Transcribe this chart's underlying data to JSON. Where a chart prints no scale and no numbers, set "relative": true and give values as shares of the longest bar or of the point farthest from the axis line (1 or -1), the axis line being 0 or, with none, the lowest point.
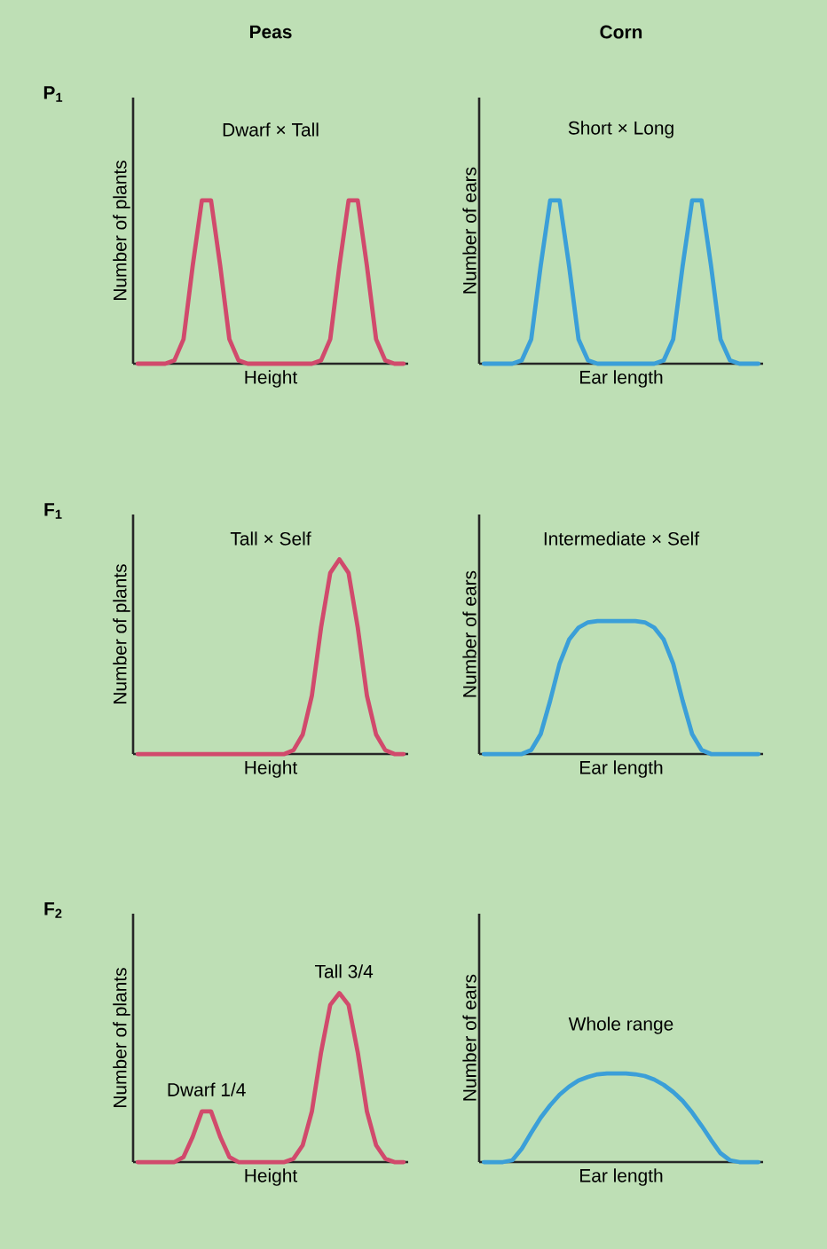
{
  "chart_data": [
    {
      "type": "line",
      "relative": true,
      "title": "Dwarf × Tall",
      "xlabel": "Height",
      "ylabel": "Number of plants",
      "annotations": [
        "Peas",
        "P$_{1}$"
      ],
      "categories": [
        null,
        null,
        null,
        null,
        null,
        null,
        null,
        null,
        null,
        null,
        null,
        null,
        null,
        null,
        null,
        null,
        null,
        null,
        null,
        null,
        null,
        null,
        null,
        null,
        null,
        null,
        null,
        null,
        null,
        null
      ],
      "color": "#d14a6c",
      "values": [
        0,
        0,
        0,
        0,
        0.02,
        0.15,
        0.6,
        1,
        1,
        0.6,
        0.15,
        0.02,
        0,
        0,
        0,
        0,
        0,
        0,
        0,
        0,
        0.02,
        0.15,
        0.6,
        1,
        1,
        0.6,
        0.15,
        0.02,
        0,
        0
      ]
    },
    {
      "type": "line",
      "relative": true,
      "title": "Short × Long",
      "xlabel": "Ear length",
      "ylabel": "Number of ears",
      "annotations": [
        "Corn"
      ],
      "categories": [
        null,
        null,
        null,
        null,
        null,
        null,
        null,
        null,
        null,
        null,
        null,
        null,
        null,
        null,
        null,
        null,
        null,
        null,
        null,
        null,
        null,
        null,
        null,
        null,
        null,
        null,
        null,
        null,
        null,
        null
      ],
      "color": "#3b9fd8",
      "values": [
        0,
        0,
        0,
        0,
        0.02,
        0.15,
        0.6,
        1,
        1,
        0.6,
        0.15,
        0.02,
        0,
        0,
        0,
        0,
        0,
        0,
        0,
        0.02,
        0.15,
        0.6,
        1,
        1,
        0.6,
        0.15,
        0.02,
        0,
        0,
        0
      ]
    },
    {
      "type": "line",
      "relative": true,
      "title": "Tall × Self",
      "xlabel": "Height",
      "ylabel": "Number of plants",
      "annotations": [
        "F$_{1}$"
      ],
      "categories": [
        null,
        null,
        null,
        null,
        null,
        null,
        null,
        null,
        null,
        null,
        null,
        null,
        null,
        null,
        null,
        null,
        null,
        null,
        null,
        null,
        null,
        null,
        null,
        null,
        null,
        null,
        null,
        null,
        null,
        null
      ],
      "color": "#d14a6c",
      "values": [
        0,
        0,
        0,
        0,
        0,
        0,
        0,
        0,
        0,
        0,
        0,
        0,
        0,
        0,
        0,
        0,
        0,
        0.02,
        0.1,
        0.3,
        0.65,
        0.93,
        1,
        0.93,
        0.65,
        0.3,
        0.1,
        0.02,
        0,
        0
      ]
    },
    {
      "type": "line",
      "relative": true,
      "title": "Intermediate × Self",
      "xlabel": "Ear length",
      "ylabel": "Number of ears",
      "categories": [
        null,
        null,
        null,
        null,
        null,
        null,
        null,
        null,
        null,
        null,
        null,
        null,
        null,
        null,
        null,
        null,
        null,
        null,
        null,
        null,
        null,
        null,
        null,
        null,
        null,
        null,
        null,
        null,
        null,
        null
      ],
      "color": "#3b9fd8",
      "values": [
        0,
        0,
        0,
        0,
        0,
        0.03,
        0.15,
        0.4,
        0.68,
        0.86,
        0.95,
        0.99,
        1,
        1,
        1,
        1,
        1,
        0.99,
        0.95,
        0.86,
        0.68,
        0.4,
        0.15,
        0.03,
        0,
        0,
        0,
        0,
        0,
        0
      ]
    },
    {
      "type": "line",
      "relative": true,
      "xlabel": "Height",
      "ylabel": "Number of plants",
      "annotations": [
        "F$_{2}$",
        {
          "text": "Dwarf 1/4",
          "y": 0.3
        },
        {
          "text": "Tall 3/4",
          "y": 1
        }
      ],
      "categories": [
        null,
        null,
        null,
        null,
        null,
        null,
        null,
        null,
        null,
        null,
        null,
        null,
        null,
        null,
        null,
        null,
        null,
        null,
        null,
        null,
        null,
        null,
        null,
        null,
        null,
        null,
        null,
        null,
        null,
        null
      ],
      "color": "#d14a6c",
      "values": [
        0,
        0,
        0,
        0,
        0,
        0.03,
        0.15,
        0.3,
        0.3,
        0.15,
        0.03,
        0,
        0,
        0,
        0,
        0,
        0,
        0.02,
        0.1,
        0.3,
        0.65,
        0.93,
        1,
        0.93,
        0.65,
        0.3,
        0.1,
        0.02,
        0,
        0
      ]
    },
    {
      "type": "line",
      "relative": true,
      "title": "Whole range",
      "xlabel": "Ear length",
      "ylabel": "Number of ears",
      "categories": [
        null,
        null,
        null,
        null,
        null,
        null,
        null,
        null,
        null,
        null,
        null,
        null,
        null,
        null,
        null,
        null,
        null,
        null,
        null,
        null,
        null,
        null,
        null,
        null,
        null,
        null,
        null,
        null,
        null,
        null
      ],
      "color": "#3b9fd8",
      "values": [
        0,
        0,
        0,
        0.02,
        0.15,
        0.33,
        0.5,
        0.64,
        0.76,
        0.85,
        0.92,
        0.96,
        0.99,
        1,
        1,
        1,
        0.99,
        0.97,
        0.93,
        0.87,
        0.79,
        0.69,
        0.56,
        0.41,
        0.25,
        0.1,
        0.02,
        0,
        0,
        0
      ]
    }
  ]
}
